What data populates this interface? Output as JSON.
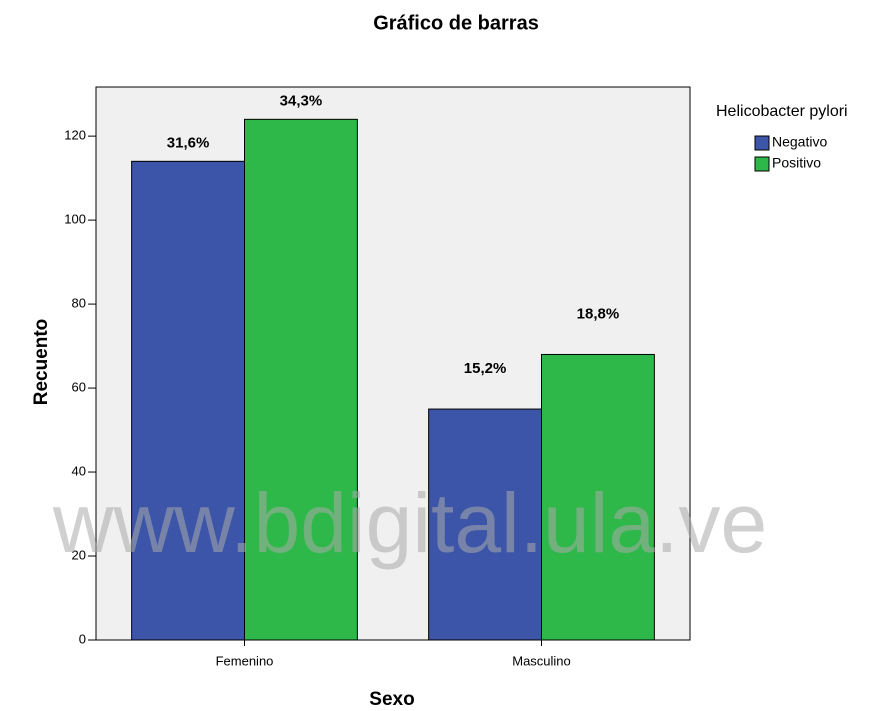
{
  "chart_data": {
    "type": "bar",
    "title": "Gráfico de barras",
    "x_label": "Sexo",
    "y_label": "Recuento",
    "categories": [
      "Femenino",
      "Masculino"
    ],
    "legend_title": "Helicobacter pylori",
    "series": [
      {
        "name": "Negativo",
        "color": "#3c55a8",
        "values": [
          114,
          55
        ],
        "percent_labels": [
          "31,6%",
          "15,2%"
        ]
      },
      {
        "name": "Positivo",
        "color": "#2fb84a",
        "values": [
          124,
          68
        ],
        "percent_labels": [
          "34,3%",
          "18,8%"
        ]
      }
    ],
    "ylim": [
      0,
      131.7
    ],
    "yticks": [
      0,
      20,
      40,
      60,
      80,
      100,
      120
    ],
    "legend": "right",
    "watermark": "www.bdigital.ula.ve"
  }
}
